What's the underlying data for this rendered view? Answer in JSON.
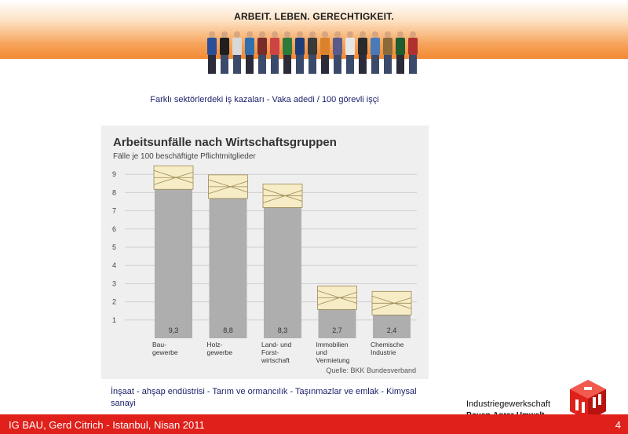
{
  "header": {
    "slogan": "ARBEIT. LEBEN. GERECHTIGKEIT."
  },
  "subtitle": "Farklı sektörlerdeki iş kazaları - Vaka adedi / 100 görevli işçi",
  "chart_data": {
    "type": "bar",
    "title": "Arbeitsunfälle nach Wirtschaftsgruppen",
    "subtitle": "Fälle je 100 beschäftigte Pflichtmitglieder",
    "source": "Quelle: BKK Bundesverband",
    "categories": [
      [
        "Bau-",
        "gewerbe"
      ],
      [
        "Holz-",
        "gewerbe"
      ],
      [
        "Land- und",
        "Forst-",
        "wirtschaft"
      ],
      [
        "Immobilien",
        "und",
        "Vermietung"
      ],
      [
        "Chemische",
        "Industrie"
      ]
    ],
    "values": [
      9.3,
      8.8,
      8.3,
      2.7,
      2.4
    ],
    "value_labels": [
      "9,3",
      "8,8",
      "8,3",
      "2,7",
      "2,4"
    ],
    "yticks": [
      1,
      2,
      3,
      4,
      5,
      6,
      7,
      8,
      9
    ],
    "ylim": [
      0,
      9.3
    ],
    "grid": true,
    "colors": {
      "bar": "#aeaeae",
      "bandage": "#f6ecc6",
      "bandage_line": "#9e8a55",
      "background": "#efefef",
      "grid": "#cfcfcf"
    }
  },
  "caption": "İnşaat - ahşap endüstrisi - Tarım ve ormancılık - Taşınmazlar ve emlak - Kimysal sanayi",
  "logo": {
    "line1": "Industriegewerkschaft",
    "line2": "Bauen-Agrar-Umwelt"
  },
  "footer": {
    "text": "IG BAU, Gerd Citrich - Istanbul, Nisan 2011",
    "page": "4"
  }
}
